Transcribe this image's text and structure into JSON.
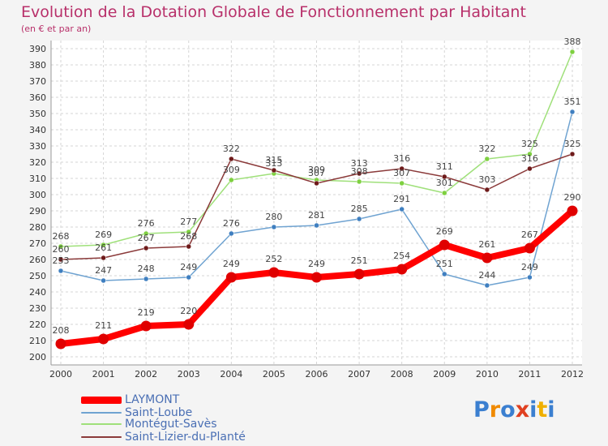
{
  "chart_data": {
    "type": "line",
    "title": "Evolution de la Dotation Globale de Fonctionnement par Habitant",
    "subtitle": "(en € et par an)",
    "xlabel": "",
    "ylabel": "",
    "ylim": [
      200,
      390
    ],
    "ytick_step": 10,
    "grid": true,
    "x": [
      "2000",
      "2001",
      "2002",
      "2003",
      "2004",
      "2005",
      "2006",
      "2007",
      "2008",
      "2009",
      "2010",
      "2011",
      "2012"
    ],
    "series": [
      {
        "name": "LAYMONT",
        "color": "#ff0000",
        "marker_color": "#e00000",
        "emphasis": true,
        "values": [
          208,
          211,
          219,
          220,
          249,
          252,
          249,
          251,
          254,
          269,
          261,
          267,
          290
        ]
      },
      {
        "name": "Saint-Loube",
        "color": "#6fa3d1",
        "marker_color": "#3f7fc0",
        "emphasis": false,
        "values": [
          253,
          247,
          248,
          249,
          276,
          280,
          281,
          285,
          291,
          251,
          244,
          249,
          351
        ]
      },
      {
        "name": "Montégut-Savès",
        "color": "#9fe07a",
        "marker_color": "#7ed040",
        "emphasis": false,
        "values": [
          268,
          269,
          276,
          277,
          309,
          313,
          309,
          308,
          307,
          301,
          322,
          325,
          388
        ]
      },
      {
        "name": "Saint-Lizier-du-Planté",
        "color": "#8b3a3a",
        "marker_color": "#6e1a1a",
        "emphasis": false,
        "values": [
          260,
          261,
          267,
          268,
          322,
          315,
          307,
          313,
          316,
          311,
          303,
          316,
          325
        ]
      }
    ]
  },
  "legend_position": "bottom-left",
  "logo": {
    "letters": [
      "P",
      "r",
      "o",
      "x",
      "i",
      "t",
      "i"
    ],
    "colors": [
      "#3b7fd0",
      "#f08a00",
      "#3b7fd0",
      "#e04020",
      "#3b7fd0",
      "#f0b000",
      "#3b7fd0"
    ]
  }
}
